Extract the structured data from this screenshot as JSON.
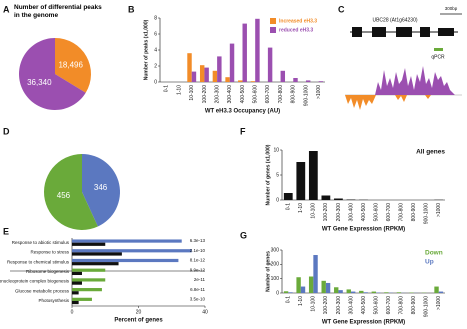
{
  "chart_data": [
    {
      "panel": "A",
      "type": "pie",
      "title": "Number of differential peaks in the genome",
      "values": [
        18496,
        36340
      ],
      "value_labels": [
        "18,496",
        "36,340"
      ],
      "colors": [
        "#f28c28",
        "#9b4fb0"
      ]
    },
    {
      "panel": "B",
      "type": "bar",
      "y_label": "Number of peaks (x1,000)",
      "x_label": "WT eH3.3 Occupancy (AU)",
      "categories": [
        "0-1",
        "1-10",
        "10-100",
        "100-200",
        "200-300",
        "300-400",
        "400-500",
        "500-600",
        "600-700",
        "700-800",
        "800-900",
        "900-1000",
        ">1000"
      ],
      "series": [
        {
          "name": "Increased eH3.3",
          "color": "#f28c28",
          "values": [
            0,
            0,
            3.6,
            2.1,
            1.4,
            0.6,
            0.2,
            0.1,
            0,
            0,
            0,
            0,
            0
          ]
        },
        {
          "name": "reduced eH3.3",
          "color": "#9b4fb0",
          "values": [
            0,
            0,
            1.3,
            1.8,
            3.2,
            4.8,
            7.3,
            7.9,
            4.3,
            1.4,
            0.5,
            0.2,
            0.1
          ]
        }
      ],
      "ylim": [
        0,
        8
      ],
      "yticks": [
        0,
        2,
        4,
        6,
        8
      ],
      "legend": "upper right",
      "legend_style": "swatch"
    },
    {
      "panel": "C",
      "type": "track",
      "title": "UBC28 (At1g64230)",
      "scale_label": "300bp",
      "annotation": "qPCR"
    },
    {
      "panel": "D",
      "type": "pie",
      "values": [
        346,
        456
      ],
      "colors": [
        "#5b78c0",
        "#6aaa3a"
      ]
    },
    {
      "panel": "E",
      "type": "hbar",
      "x_label": "Percent of genes",
      "categories": [
        "Response to abiotic stimulus",
        "Response to stress",
        "Response to chemical stimulus",
        "Ribosome biogenesis",
        "Ribonucleoprotein complex biogenesis",
        "Glucose metabolic process",
        "Photosynthesis"
      ],
      "series": [
        {
          "colors": [
            "#5b78c0",
            "#5b78c0",
            "#5b78c0",
            "#6aaa3a",
            "#6aaa3a",
            "#6aaa3a",
            "#6aaa3a"
          ],
          "values": [
            33,
            36,
            32,
            10,
            10,
            9,
            6
          ]
        },
        {
          "color": "#111111",
          "values": [
            10,
            15,
            14,
            3,
            3,
            2,
            2
          ]
        }
      ],
      "annotations": [
        "6.3e-13",
        "2.1e-10",
        "8.1e-12",
        "9.9e-12",
        "2e-11",
        "6.8e-11",
        "3.5e-10"
      ],
      "xlim": [
        0,
        40
      ],
      "xticks": [
        0,
        20,
        40
      ]
    },
    {
      "panel": "F",
      "type": "bar",
      "y_label": "Number of genes (x1,000)",
      "x_label": "WT Gene Expression (RPKM)",
      "annotation": "All genes",
      "categories": [
        "0-1",
        "1-10",
        "10-100",
        "100-200",
        "200-300",
        "300-400",
        "400-500",
        "500-600",
        "600-700",
        "700-800",
        "800-900",
        "900-1000",
        ">1000"
      ],
      "series": [
        {
          "color": "#111111",
          "values": [
            1.4,
            7.6,
            9.8,
            0.9,
            0.3,
            0.1,
            0.05,
            0,
            0,
            0,
            0,
            0,
            0.05
          ]
        }
      ],
      "ylim": [
        0,
        10
      ],
      "yticks": [
        0,
        5,
        10
      ]
    },
    {
      "panel": "G",
      "type": "bar",
      "y_label": "Number of genes",
      "x_label": "WT Gene Expression (RPKM)",
      "categories": [
        "0-1",
        "1-10",
        "10-100",
        "100-200",
        "200-300",
        "300-400",
        "400-500",
        "500-600",
        "600-700",
        "700-800",
        "800-900",
        "900-1000",
        ">1000"
      ],
      "series": [
        {
          "name": "Down",
          "color": "#6aaa3a",
          "values": [
            12,
            110,
            115,
            85,
            40,
            25,
            15,
            10,
            5,
            5,
            3,
            2,
            45
          ]
        },
        {
          "name": "Up",
          "color": "#5b78c0",
          "values": [
            5,
            45,
            265,
            70,
            20,
            10,
            5,
            3,
            2,
            1,
            1,
            0,
            10
          ]
        }
      ],
      "ylim": [
        0,
        300
      ],
      "yticks": [
        0,
        100,
        200,
        300
      ],
      "legend": "upper right",
      "legend_style": "text"
    }
  ]
}
